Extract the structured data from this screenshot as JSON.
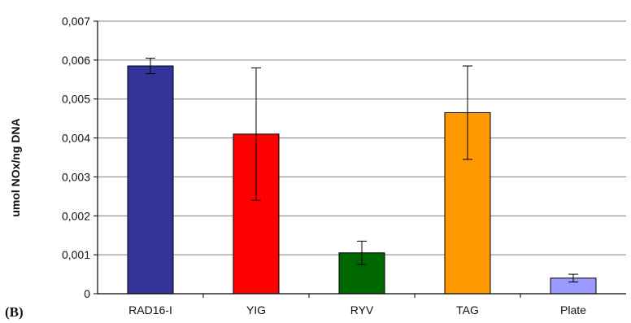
{
  "chart_data": {
    "type": "bar",
    "title": "",
    "panel_label": "(B)",
    "xlabel": "",
    "ylabel": "umol NOx/ng DNA",
    "categories": [
      "RAD16-I",
      "YIG",
      "RYV",
      "TAG",
      "Plate"
    ],
    "values": [
      0.00585,
      0.0041,
      0.00105,
      0.00465,
      0.0004
    ],
    "errors": [
      0.0002,
      0.0017,
      0.0003,
      0.0012,
      0.0001
    ],
    "colors": [
      "#333399",
      "#ff0000",
      "#006600",
      "#ff9900",
      "#9999ff"
    ],
    "yticks": [
      "0",
      "0,001",
      "0,002",
      "0,003",
      "0,004",
      "0,005",
      "0,006",
      "0,007"
    ],
    "ylim": [
      0,
      0.007
    ],
    "grid": true,
    "legend": "none"
  }
}
